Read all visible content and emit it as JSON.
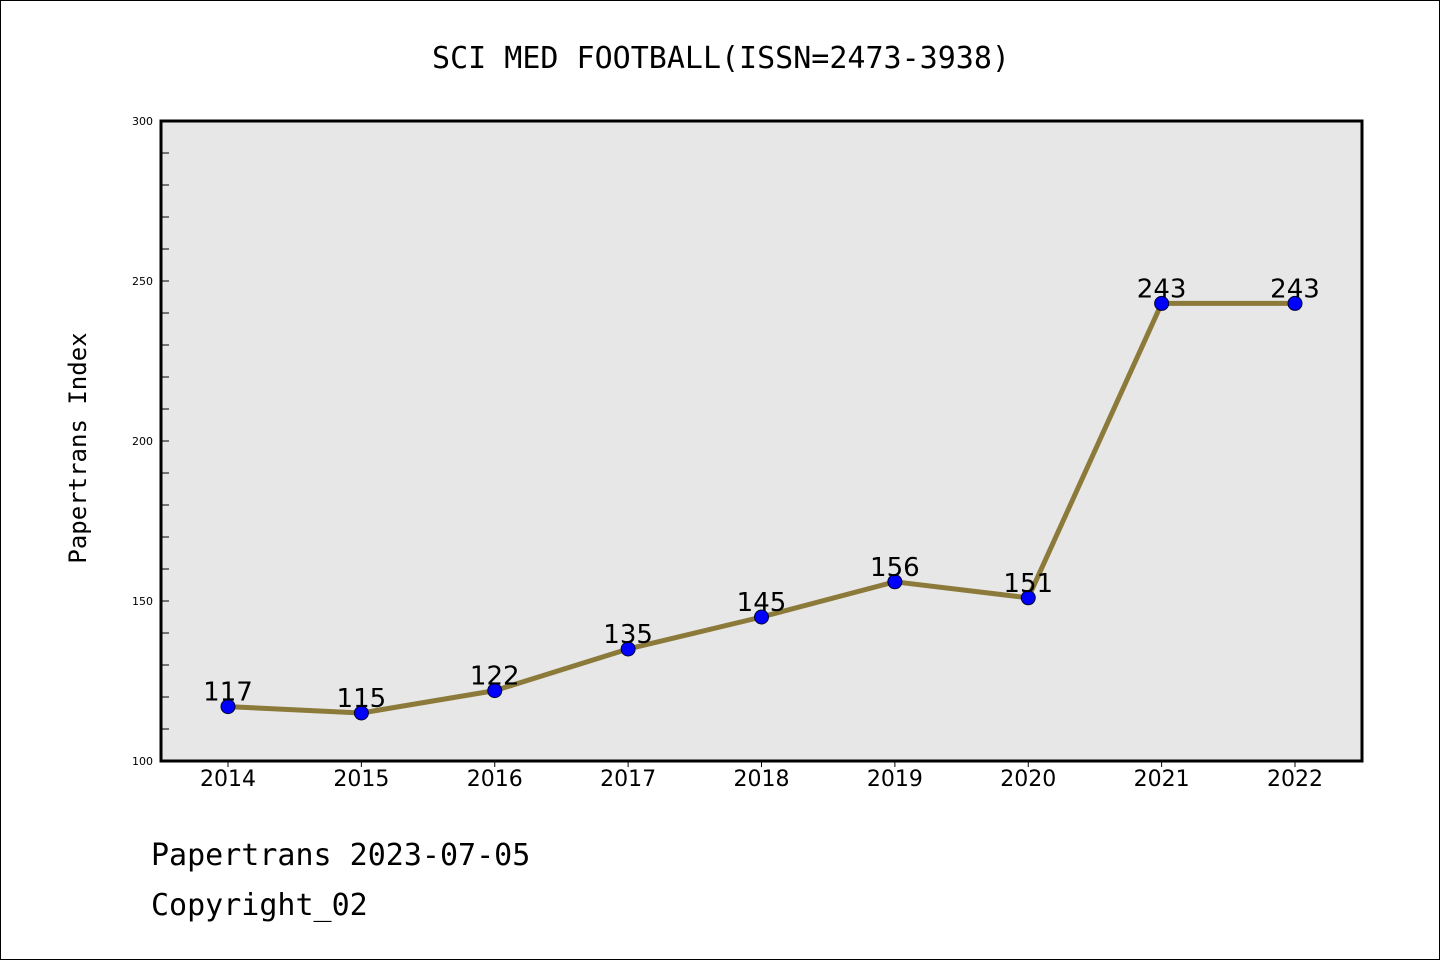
{
  "chart_data": {
    "type": "line",
    "title": "SCI MED FOOTBALL(ISSN=2473-3938)",
    "xlabel": "",
    "ylabel": "Papertrans Index",
    "categories": [
      "2014",
      "2015",
      "2016",
      "2017",
      "2018",
      "2019",
      "2020",
      "2021",
      "2022"
    ],
    "values": [
      117,
      115,
      122,
      135,
      145,
      156,
      151,
      243,
      243
    ],
    "data_labels": [
      "117",
      "115",
      "122",
      "135",
      "145",
      "156",
      "151",
      "243",
      "243"
    ],
    "ylim": [
      100,
      300
    ],
    "yticks": [
      "100",
      "150",
      "200",
      "250",
      "300"
    ],
    "grid": false,
    "legend": "none",
    "colors": {
      "line": "#8c7a3a",
      "marker": "#0000ff",
      "plot_background": "#e7e7e7",
      "axes": "#000000"
    }
  },
  "footer": {
    "line1": "Papertrans 2023-07-05",
    "line2": "Copyright_02"
  }
}
